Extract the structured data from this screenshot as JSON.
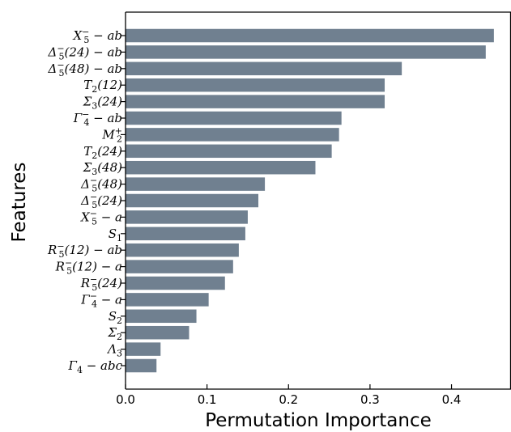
{
  "chart_data": {
    "type": "bar",
    "orientation": "horizontal",
    "xlabel": "Permutation Importance",
    "ylabel": "Features",
    "xlim": [
      0.0,
      0.473
    ],
    "x_ticks": [
      0.0,
      0.1,
      0.2,
      0.3,
      0.4
    ],
    "x_tick_labels": [
      "0.0",
      "0.1",
      "0.2",
      "0.3",
      "0.4"
    ],
    "grid": false,
    "bar_color": "#708090",
    "categories": [
      "X5− − ab",
      "Δ5−(24) − ab",
      "Δ5−(48) − ab",
      "T2(12)",
      "Σ3(24)",
      "Γ4− − ab",
      "M2+",
      "T2(24)",
      "Σ3(48)",
      "Δ5−(48)",
      "Δ5−(24)",
      "X5− − a",
      "S1",
      "R5−(12) − ab",
      "R5−(12) − a",
      "R5−(24)",
      "Γ4− − a",
      "S2",
      "Σ2",
      "Λ3",
      "Γ4 − abc"
    ],
    "values": [
      0.452,
      0.442,
      0.339,
      0.318,
      0.318,
      0.265,
      0.262,
      0.253,
      0.233,
      0.171,
      0.163,
      0.15,
      0.147,
      0.139,
      0.132,
      0.122,
      0.102,
      0.087,
      0.078,
      0.043,
      0.038
    ]
  }
}
